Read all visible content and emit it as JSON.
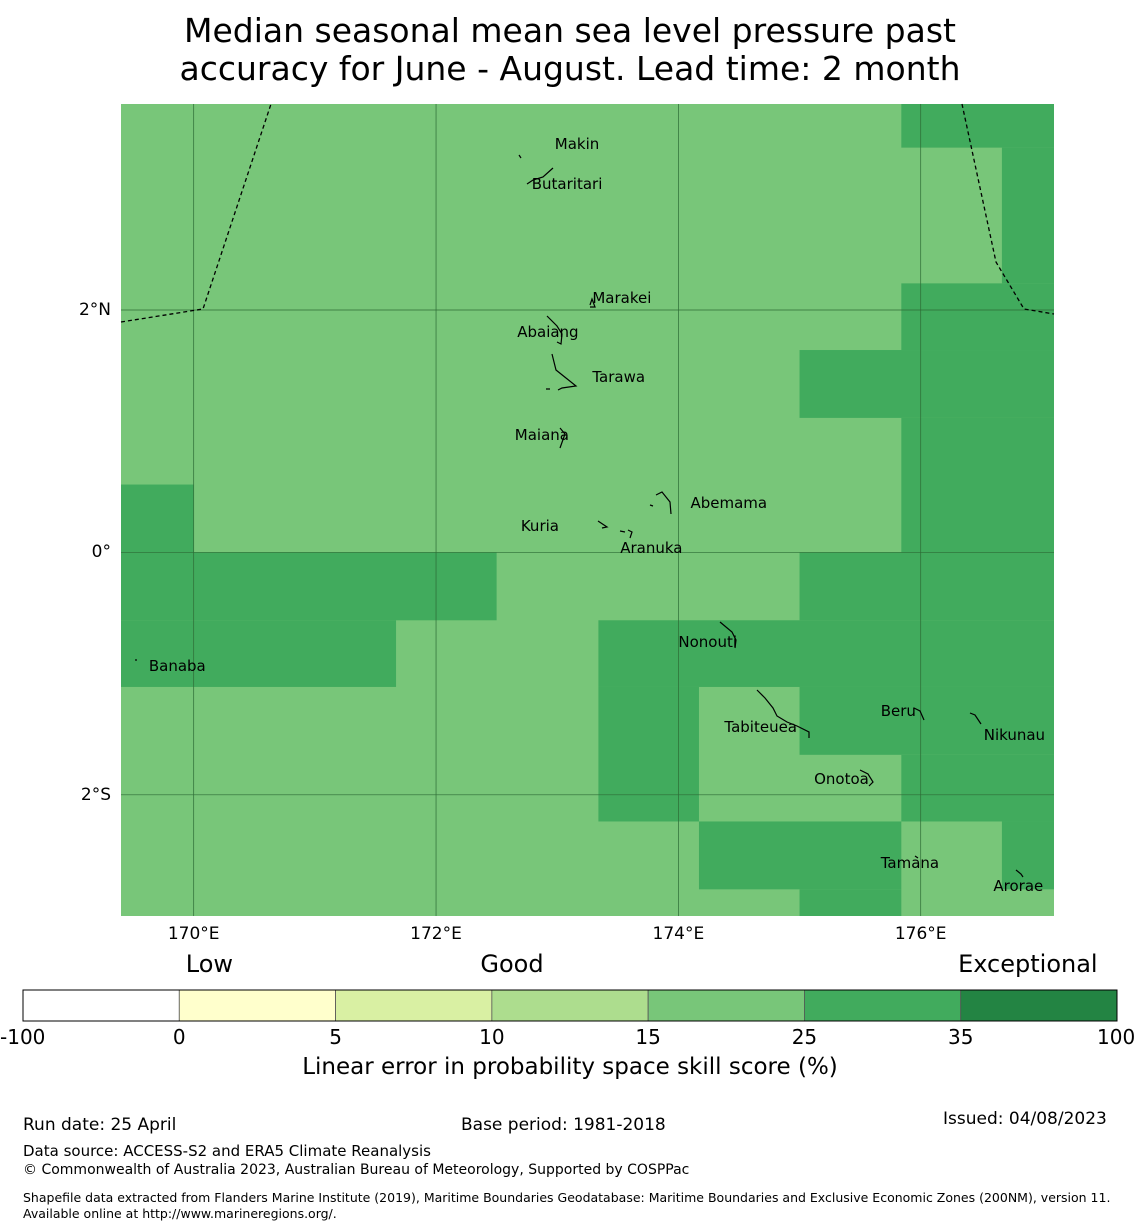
{
  "title_line1": "Median seasonal mean sea level pressure past",
  "title_line2": "accuracy for June - August. Lead time: 2 month",
  "map": {
    "lon_range": [
      169.4,
      177.1
    ],
    "lat_range": [
      -3.0,
      3.7
    ],
    "lon_ticks": [
      {
        "value": 170,
        "label": "170°E"
      },
      {
        "value": 172,
        "label": "172°E"
      },
      {
        "value": 174,
        "label": "174°E"
      },
      {
        "value": 176,
        "label": "176°E"
      }
    ],
    "lat_ticks": [
      {
        "value": 2,
        "label": "2°N"
      },
      {
        "value": 0,
        "label": "0°"
      },
      {
        "value": -2,
        "label": "2°S"
      }
    ],
    "base_color": "#78c679",
    "high_color": "#41ab5d",
    "high_skill_cells": [
      {
        "lon": [
          175.84,
          177.1
        ],
        "lat": [
          3.34,
          3.7
        ]
      },
      {
        "lon": [
          176.67,
          177.1
        ],
        "lat": [
          2.22,
          3.34
        ]
      },
      {
        "lon": [
          175.84,
          177.1
        ],
        "lat": [
          1.67,
          2.22
        ]
      },
      {
        "lon": [
          175.0,
          177.1
        ],
        "lat": [
          1.11,
          1.67
        ]
      },
      {
        "lon": [
          175.84,
          177.1
        ],
        "lat": [
          0.0,
          1.11
        ]
      },
      {
        "lon": [
          169.4,
          170.0
        ],
        "lat": [
          0.0,
          0.56
        ]
      },
      {
        "lon": [
          169.4,
          172.5
        ],
        "lat": [
          -0.56,
          0.0
        ]
      },
      {
        "lon": [
          175.0,
          177.1
        ],
        "lat": [
          -0.56,
          0.0
        ]
      },
      {
        "lon": [
          169.4,
          171.67
        ],
        "lat": [
          -1.11,
          -0.56
        ]
      },
      {
        "lon": [
          173.34,
          177.1
        ],
        "lat": [
          -1.11,
          -0.56
        ]
      },
      {
        "lon": [
          173.34,
          174.17
        ],
        "lat": [
          -2.22,
          -1.11
        ]
      },
      {
        "lon": [
          175.0,
          177.1
        ],
        "lat": [
          -1.67,
          -1.11
        ]
      },
      {
        "lon": [
          175.84,
          177.1
        ],
        "lat": [
          -2.22,
          -1.67
        ]
      },
      {
        "lon": [
          174.17,
          175.84
        ],
        "lat": [
          -2.78,
          -2.22
        ]
      },
      {
        "lon": [
          176.67,
          177.1
        ],
        "lat": [
          -2.78,
          -2.22
        ]
      },
      {
        "lon": [
          175.0,
          175.84
        ],
        "lat": [
          -3.0,
          -2.78
        ]
      }
    ],
    "islands": [
      {
        "name": "Makin",
        "lon": 172.98,
        "lat": 3.37
      },
      {
        "name": "Butaritari",
        "lon": 172.79,
        "lat": 3.04
      },
      {
        "name": "Marakei",
        "lon": 173.29,
        "lat": 2.1
      },
      {
        "name": "Abaiang",
        "lon": 172.67,
        "lat": 1.82
      },
      {
        "name": "Tarawa",
        "lon": 173.29,
        "lat": 1.45
      },
      {
        "name": "Maiana",
        "lon": 172.65,
        "lat": 0.97
      },
      {
        "name": "Abemama",
        "lon": 174.1,
        "lat": 0.41
      },
      {
        "name": "Kuria",
        "lon": 172.7,
        "lat": 0.22
      },
      {
        "name": "Aranuka",
        "lon": 173.52,
        "lat": 0.04
      },
      {
        "name": "Nonouti",
        "lon": 174.0,
        "lat": -0.74
      },
      {
        "name": "Banaba",
        "lon": 169.63,
        "lat": -0.94
      },
      {
        "name": "Beru",
        "lon": 175.67,
        "lat": -1.31
      },
      {
        "name": "Tabiteuea",
        "lon": 174.38,
        "lat": -1.44
      },
      {
        "name": "Nikunau",
        "lon": 176.52,
        "lat": -1.51
      },
      {
        "name": "Onotoa",
        "lon": 175.12,
        "lat": -1.87
      },
      {
        "name": "Tamana",
        "lon": 175.67,
        "lat": -2.56
      },
      {
        "name": "Arorae",
        "lon": 176.6,
        "lat": -2.75
      }
    ]
  },
  "legend": {
    "categories": [
      {
        "label": "Low",
        "at": 2
      },
      {
        "label": "Good",
        "at": 4
      },
      {
        "label": "Exceptional",
        "at": 7
      }
    ],
    "bins": [
      {
        "from": "-100",
        "to": "0",
        "color": "#ffffff"
      },
      {
        "from": "0",
        "to": "5",
        "color": "#ffffcc"
      },
      {
        "from": "5",
        "to": "10",
        "color": "#d9f0a3"
      },
      {
        "from": "10",
        "to": "15",
        "color": "#addd8e"
      },
      {
        "from": "15",
        "to": "25",
        "color": "#78c679"
      },
      {
        "from": "25",
        "to": "35",
        "color": "#41ab5d"
      },
      {
        "from": "35",
        "to": "100",
        "color": "#238443"
      }
    ],
    "ticks": [
      "-100",
      "0",
      "5",
      "10",
      "15",
      "25",
      "35",
      "100"
    ],
    "label": "Linear error in probability space skill score (%)"
  },
  "footer": {
    "run_date": "Run date: 25 April",
    "base_period": "Base period: 1981-2018",
    "issued": "Issued: 04/08/2023",
    "data_source": "Data source: ACCESS-S2 and ERA5 Climate Reanalysis",
    "copyright": "© Commonwealth of Australia 2023, Australian Bureau of Meteorology, Supported by COSPPac",
    "shapefile": "Shapefile data extracted from Flanders Marine Institute (2019), Maritime Boundaries Geodatabase: Maritime Boundaries and Exclusive Economic Zones (200NM), version 11. Available online at http://www.marineregions.org/."
  }
}
